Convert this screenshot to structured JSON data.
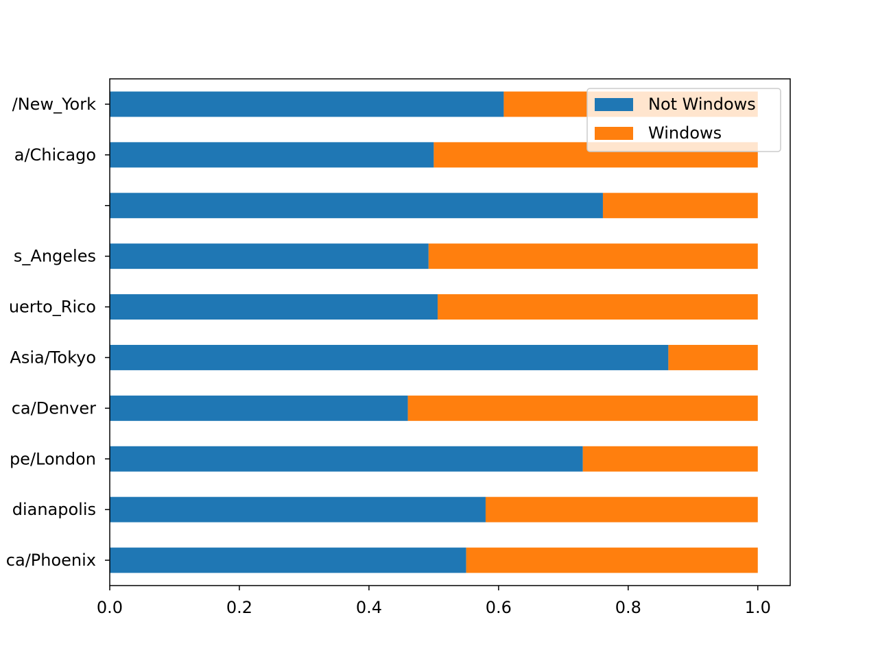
{
  "chart_data": {
    "type": "bar",
    "orientation": "horizontal",
    "stacked": true,
    "categories": [
      "America/Phoenix",
      "America/Indianapolis",
      "Europe/London",
      "America/Denver",
      "Asia/Tokyo",
      "America/Puerto_Rico",
      "America/Los_Angeles",
      "",
      "America/Chicago",
      "America/New_York"
    ],
    "visible_tick_labels": [
      "ca/Phoenix",
      "dianapolis",
      "pe/London",
      "ca/Denver",
      "Asia/Tokyo",
      "uerto_Rico",
      "s_Angeles",
      "",
      "a/Chicago",
      "/New_York"
    ],
    "series": [
      {
        "name": "Not Windows",
        "color": "#1f77b4",
        "values": [
          0.55,
          0.58,
          0.73,
          0.46,
          0.862,
          0.506,
          0.492,
          0.761,
          0.5,
          0.608
        ]
      },
      {
        "name": "Windows",
        "color": "#ff7f0e",
        "values": [
          0.45,
          0.42,
          0.27,
          0.54,
          0.138,
          0.494,
          0.508,
          0.239,
          0.5,
          0.392
        ]
      }
    ],
    "xlim": [
      0,
      1.05
    ],
    "xticks": [
      "0.0",
      "0.2",
      "0.4",
      "0.6",
      "0.8",
      "1.0"
    ],
    "title": "",
    "xlabel": "",
    "ylabel": "",
    "grid": false,
    "legend_position": "top-right"
  }
}
